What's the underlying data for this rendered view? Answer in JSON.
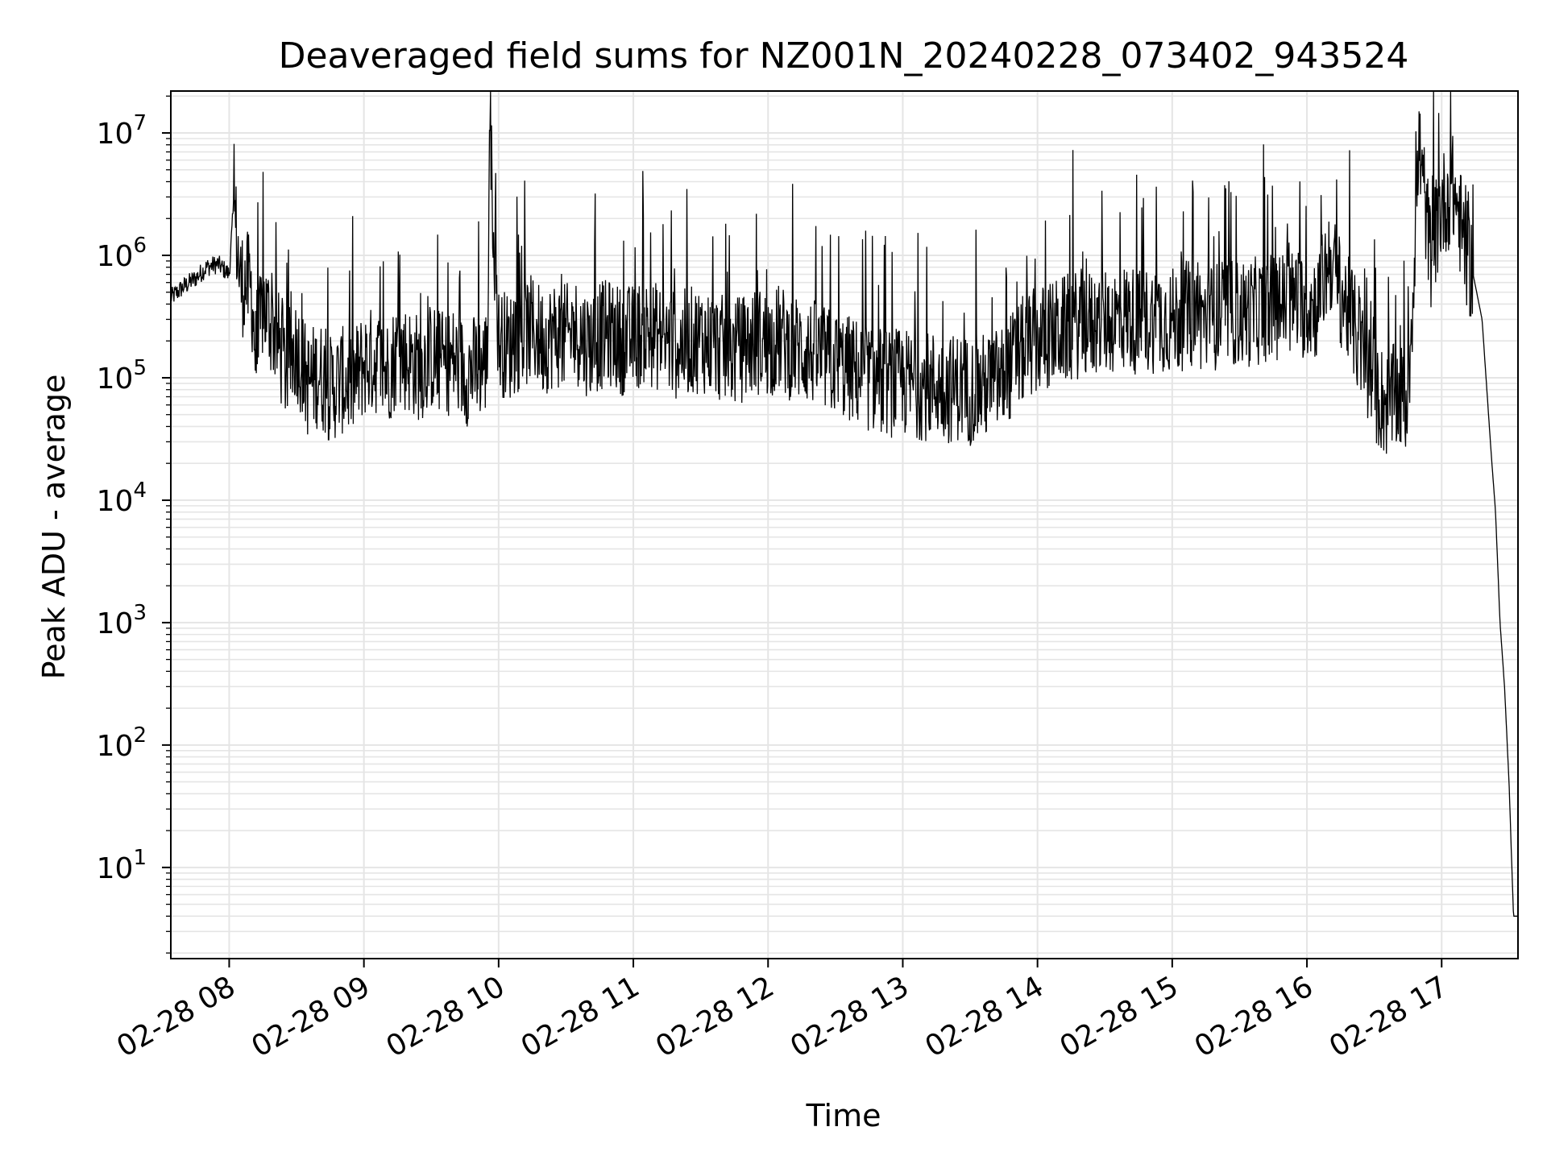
{
  "chart_data": {
    "type": "line",
    "title": "Deaveraged field sums for NZ001N_20240228_073402_943524",
    "xlabel": "Time",
    "ylabel": "Peak ADU - average",
    "yscale": "log",
    "ylim": [
      1.8,
      22000000
    ],
    "xlim": [
      "2024-02-28 07:34",
      "2024-02-28 17:34"
    ],
    "grid": true,
    "grid_color": "#e5e5e5",
    "line_color": "#000000",
    "x_ticks": [
      {
        "value": "2024-02-28 08:00",
        "label": "02-28 08"
      },
      {
        "value": "2024-02-28 09:00",
        "label": "02-28 09"
      },
      {
        "value": "2024-02-28 10:00",
        "label": "02-28 10"
      },
      {
        "value": "2024-02-28 11:00",
        "label": "02-28 11"
      },
      {
        "value": "2024-02-28 12:00",
        "label": "02-28 12"
      },
      {
        "value": "2024-02-28 13:00",
        "label": "02-28 13"
      },
      {
        "value": "2024-02-28 14:00",
        "label": "02-28 14"
      },
      {
        "value": "2024-02-28 15:00",
        "label": "02-28 15"
      },
      {
        "value": "2024-02-28 16:00",
        "label": "02-28 16"
      },
      {
        "value": "2024-02-28 17:00",
        "label": "02-28 17"
      }
    ],
    "y_ticks": [
      {
        "value": 10,
        "base": "10",
        "exp": "1"
      },
      {
        "value": 100,
        "base": "10",
        "exp": "2"
      },
      {
        "value": 1000,
        "base": "10",
        "exp": "3"
      },
      {
        "value": 10000,
        "base": "10",
        "exp": "4"
      },
      {
        "value": 100000,
        "base": "10",
        "exp": "5"
      },
      {
        "value": 1000000,
        "base": "10",
        "exp": "6"
      },
      {
        "value": 10000000,
        "base": "10",
        "exp": "7"
      }
    ],
    "series": [
      {
        "x": [
          "2024-02-28 07:34",
          "2024-02-28 07:40",
          "2024-02-28 07:45",
          "2024-02-28 07:50",
          "2024-02-28 07:55",
          "2024-02-28 08:00",
          "2024-02-28 08:02",
          "2024-02-28 08:05",
          "2024-02-28 08:08",
          "2024-02-28 08:10",
          "2024-02-28 08:12",
          "2024-02-28 08:15",
          "2024-02-28 08:18",
          "2024-02-28 08:20",
          "2024-02-28 08:25",
          "2024-02-28 08:30",
          "2024-02-28 08:35",
          "2024-02-28 08:40",
          "2024-02-28 08:45",
          "2024-02-28 08:50",
          "2024-02-28 08:55",
          "2024-02-28 09:00",
          "2024-02-28 09:05",
          "2024-02-28 09:10",
          "2024-02-28 09:15",
          "2024-02-28 09:20",
          "2024-02-28 09:25",
          "2024-02-28 09:30",
          "2024-02-28 09:35",
          "2024-02-28 09:40",
          "2024-02-28 09:45",
          "2024-02-28 09:50",
          "2024-02-28 09:55",
          "2024-02-28 09:56",
          "2024-02-28 10:00",
          "2024-02-28 10:05",
          "2024-02-28 10:10",
          "2024-02-28 10:15",
          "2024-02-28 10:20",
          "2024-02-28 10:25",
          "2024-02-28 10:30",
          "2024-02-28 10:35",
          "2024-02-28 10:40",
          "2024-02-28 10:45",
          "2024-02-28 10:50",
          "2024-02-28 10:55",
          "2024-02-28 11:00",
          "2024-02-28 11:05",
          "2024-02-28 11:10",
          "2024-02-28 11:15",
          "2024-02-28 11:20",
          "2024-02-28 11:25",
          "2024-02-28 11:30",
          "2024-02-28 11:35",
          "2024-02-28 11:40",
          "2024-02-28 11:45",
          "2024-02-28 11:50",
          "2024-02-28 11:55",
          "2024-02-28 12:00",
          "2024-02-28 12:05",
          "2024-02-28 12:10",
          "2024-02-28 12:15",
          "2024-02-28 12:20",
          "2024-02-28 12:25",
          "2024-02-28 12:30",
          "2024-02-28 12:35",
          "2024-02-28 12:40",
          "2024-02-28 12:45",
          "2024-02-28 12:50",
          "2024-02-28 12:55",
          "2024-02-28 13:00",
          "2024-02-28 13:05",
          "2024-02-28 13:10",
          "2024-02-28 13:15",
          "2024-02-28 13:20",
          "2024-02-28 13:25",
          "2024-02-28 13:30",
          "2024-02-28 13:35",
          "2024-02-28 13:40",
          "2024-02-28 13:45",
          "2024-02-28 13:50",
          "2024-02-28 13:55",
          "2024-02-28 14:00",
          "2024-02-28 14:05",
          "2024-02-28 14:10",
          "2024-02-28 14:15",
          "2024-02-28 14:20",
          "2024-02-28 14:25",
          "2024-02-28 14:30",
          "2024-02-28 14:35",
          "2024-02-28 14:40",
          "2024-02-28 14:45",
          "2024-02-28 14:50",
          "2024-02-28 14:55",
          "2024-02-28 15:00",
          "2024-02-28 15:05",
          "2024-02-28 15:10",
          "2024-02-28 15:15",
          "2024-02-28 15:20",
          "2024-02-28 15:25",
          "2024-02-28 15:30",
          "2024-02-28 15:35",
          "2024-02-28 15:40",
          "2024-02-28 15:45",
          "2024-02-28 15:50",
          "2024-02-28 15:55",
          "2024-02-28 16:00",
          "2024-02-28 16:05",
          "2024-02-28 16:10",
          "2024-02-28 16:15",
          "2024-02-28 16:20",
          "2024-02-28 16:25",
          "2024-02-28 16:30",
          "2024-02-28 16:35",
          "2024-02-28 16:40",
          "2024-02-28 16:45",
          "2024-02-28 16:48",
          "2024-02-28 16:50",
          "2024-02-28 16:55",
          "2024-02-28 17:00",
          "2024-02-28 17:05",
          "2024-02-28 17:08",
          "2024-02-28 17:10",
          "2024-02-28 17:14",
          "2024-02-28 17:18",
          "2024-02-28 17:22",
          "2024-02-28 17:24",
          "2024-02-28 17:26",
          "2024-02-28 17:28",
          "2024-02-28 17:30",
          "2024-02-28 17:32",
          "2024-02-28 17:34"
        ],
        "y": [
          450000,
          560000,
          650000,
          800000,
          850000,
          700000,
          2600000,
          600000,
          580000,
          500000,
          130000,
          400000,
          300000,
          250000,
          120000,
          180000,
          90000,
          110000,
          80000,
          95000,
          90000,
          130000,
          140000,
          110000,
          160000,
          140000,
          120000,
          150000,
          130000,
          140000,
          110000,
          120000,
          140000,
          10500000,
          200000,
          180000,
          220000,
          250000,
          200000,
          230000,
          210000,
          240000,
          190000,
          220000,
          230000,
          200000,
          210000,
          240000,
          220000,
          200000,
          180000,
          200000,
          210000,
          190000,
          170000,
          160000,
          180000,
          200000,
          190000,
          210000,
          180000,
          170000,
          160000,
          140000,
          130000,
          120000,
          110000,
          100000,
          95000,
          90000,
          92000,
          88000,
          85000,
          90000,
          80000,
          85000,
          78000,
          82000,
          90000,
          100000,
          140000,
          180000,
          200000,
          220000,
          240000,
          260000,
          280000,
          270000,
          290000,
          300000,
          320000,
          280000,
          300000,
          310000,
          290000,
          320000,
          340000,
          300000,
          320000,
          350000,
          330000,
          340000,
          360000,
          380000,
          400000,
          420000,
          380000,
          400000,
          1000000,
          500000,
          300000,
          150000,
          80000,
          60000,
          70000,
          65000,
          1200000,
          8000000,
          1000000,
          2500000,
          3500000,
          2000000,
          1200000,
          700000,
          300000,
          25000,
          8000,
          1000,
          300,
          50,
          4,
          4
        ]
      }
    ]
  }
}
